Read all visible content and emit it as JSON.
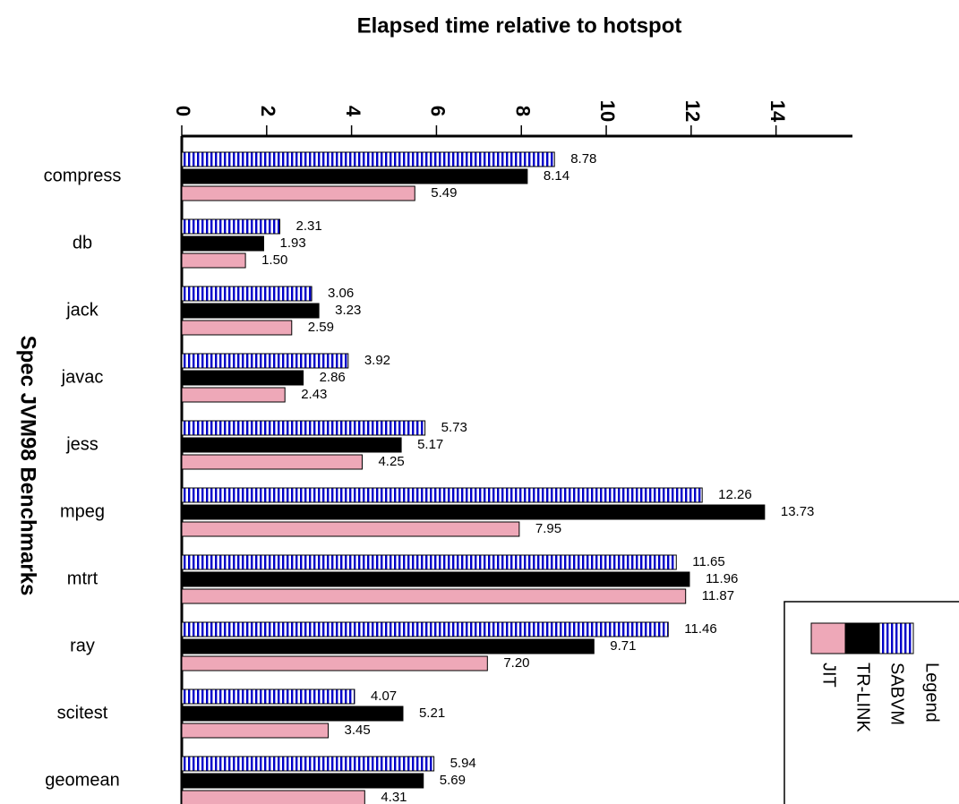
{
  "chart_data": {
    "type": "hbar",
    "title": "Elapsed time relative to hotspot",
    "y_label": "Spec JVM98 Benchmarks",
    "categories": [
      "compress",
      "db",
      "jack",
      "javac",
      "jess",
      "mpeg",
      "mtrt",
      "ray",
      "scitest",
      "geomean"
    ],
    "series": [
      {
        "name": "SABVM",
        "color": "#0000c8",
        "pattern": "vertical-stripes",
        "values": [
          8.78,
          2.31,
          3.06,
          3.92,
          5.73,
          12.26,
          11.65,
          11.46,
          4.07,
          5.94
        ],
        "value_labels": [
          "8.78",
          "2.31",
          "3.06",
          "3.92",
          "5.73",
          "12.26",
          "11.65",
          "11.46",
          "4.07",
          "5.94"
        ]
      },
      {
        "name": "TR-LINK",
        "color": "#000000",
        "values": [
          8.14,
          1.93,
          3.23,
          2.86,
          5.17,
          13.73,
          11.96,
          9.71,
          5.21,
          5.69
        ],
        "value_labels": [
          "8.14",
          "1.93",
          "3.23",
          "2.86",
          "5.17",
          "13.73",
          "11.96",
          "9.71",
          "5.21",
          "5.69"
        ]
      },
      {
        "name": "JIT",
        "color": "#eea8b8",
        "values": [
          5.49,
          1.5,
          2.59,
          2.43,
          4.25,
          7.95,
          11.87,
          7.2,
          3.45,
          4.31
        ],
        "value_labels": [
          "5.49",
          "1.50",
          "2.59",
          "2.43",
          "4.25",
          "7.95",
          "11.87",
          "7.20",
          "3.45",
          "4.31"
        ]
      }
    ],
    "xlim": [
      0,
      15.8
    ],
    "xticks": [
      0,
      2,
      4,
      6,
      8,
      10,
      12,
      14
    ],
    "legend_title": "Legend",
    "legend": "bottom-right"
  }
}
